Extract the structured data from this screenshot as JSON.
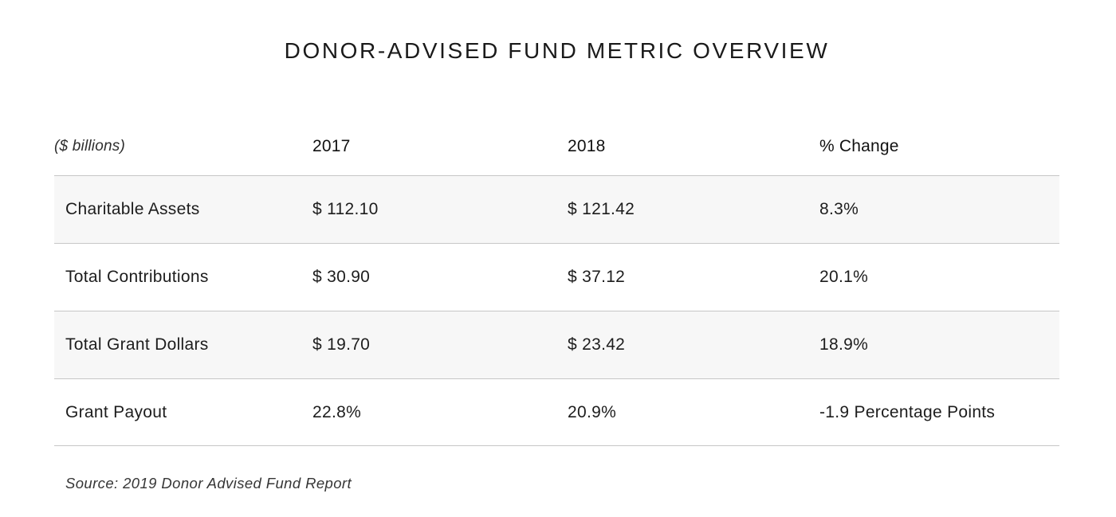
{
  "title": "DONOR-ADVISED FUND METRIC OVERVIEW",
  "table": {
    "unit_label": "($ billions)",
    "columns": [
      "2017",
      "2018",
      "% Change"
    ],
    "rows": [
      {
        "label": "Charitable Assets",
        "y2017": "$ 112.10",
        "y2018": "$ 121.42",
        "change": "8.3%",
        "shaded": true
      },
      {
        "label": "Total Contributions",
        "y2017": "$ 30.90",
        "y2018": "$ 37.12",
        "change": "20.1%",
        "shaded": false
      },
      {
        "label": "Total Grant Dollars",
        "y2017": "$ 19.70",
        "y2018": "$ 23.42",
        "change": "18.9%",
        "shaded": true
      },
      {
        "label": "Grant Payout",
        "y2017": "22.8%",
        "y2018": "20.9%",
        "change": "-1.9 Percentage Points",
        "shaded": false
      }
    ]
  },
  "source": "Source: 2019 Donor Advised Fund Report",
  "colors": {
    "background": "#ffffff",
    "shaded_row": "#f7f7f7",
    "border_line": "#c7c7c7",
    "text": "#1d1d1d"
  },
  "chart_data": {
    "type": "table",
    "title": "DONOR-ADVISED FUND METRIC OVERVIEW",
    "unit": "$ billions",
    "columns": [
      "($ billions)",
      "2017",
      "2018",
      "% Change"
    ],
    "rows": [
      [
        "Charitable Assets",
        "$ 112.10",
        "$ 121.42",
        "8.3%"
      ],
      [
        "Total Contributions",
        "$ 30.90",
        "$ 37.12",
        "20.1%"
      ],
      [
        "Total Grant Dollars",
        "$ 19.70",
        "$ 23.42",
        "18.9%"
      ],
      [
        "Grant Payout",
        "22.8%",
        "20.9%",
        "-1.9 Percentage Points"
      ]
    ],
    "numeric": {
      "charitable_assets_billions": {
        "2017": 112.1,
        "2018": 121.42,
        "pct_change": 8.3
      },
      "total_contributions_billions": {
        "2017": 30.9,
        "2018": 37.12,
        "pct_change": 20.1
      },
      "total_grant_dollars_billions": {
        "2017": 19.7,
        "2018": 23.42,
        "pct_change": 18.9
      },
      "grant_payout_pct": {
        "2017": 22.8,
        "2018": 20.9,
        "change_points": -1.9
      }
    },
    "source": "Source: 2019 Donor Advised Fund Report"
  }
}
